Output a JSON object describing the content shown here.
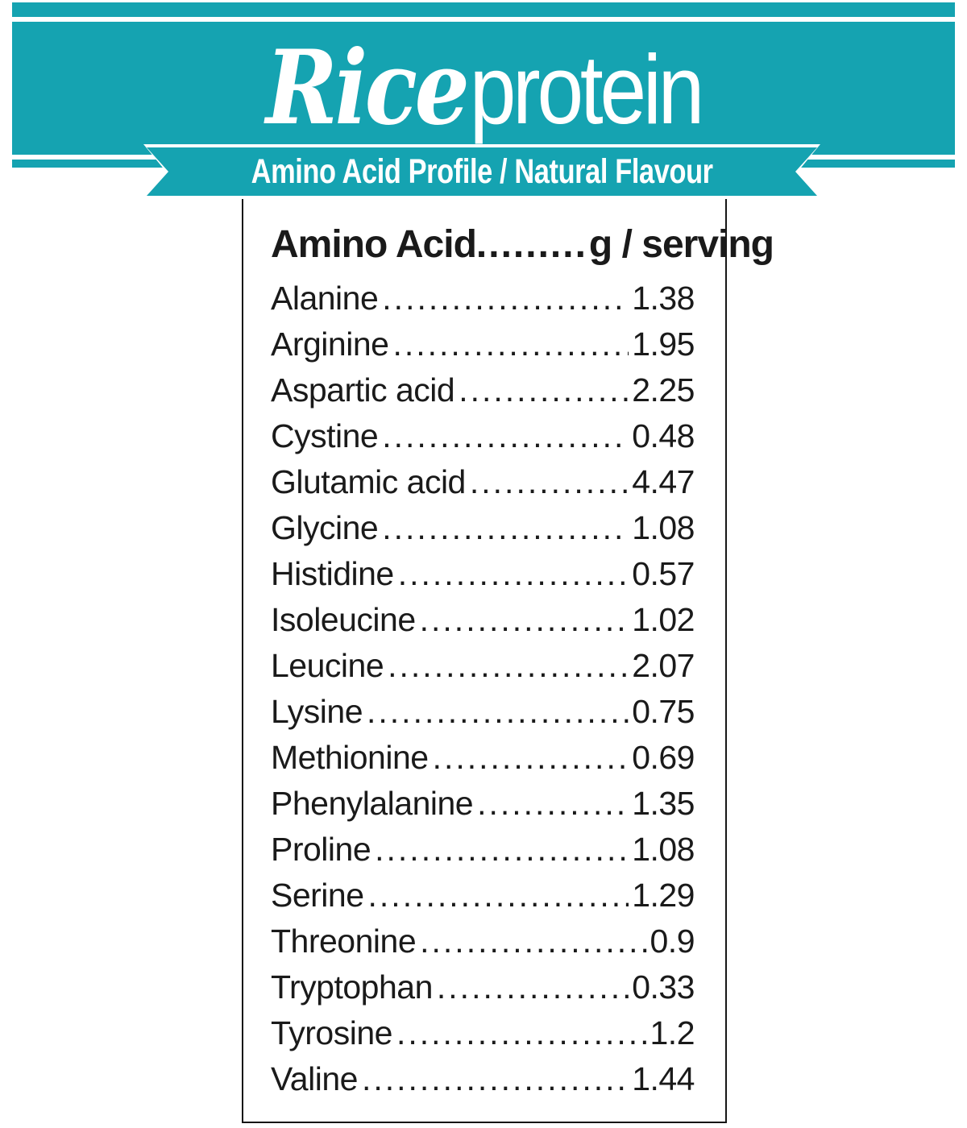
{
  "colors": {
    "teal": "#15a3b1",
    "text": "#1a1a1a"
  },
  "brand": {
    "script": "Rice",
    "rest": "protein"
  },
  "banner": {
    "text": "Amino Acid Profile / Natural Flavour"
  },
  "table": {
    "header": {
      "name": "Amino Acid",
      "leader": ".........",
      "unit": "g / serving"
    },
    "rows": [
      {
        "name": "Alanine",
        "value": "1.38"
      },
      {
        "name": "Arginine",
        "value": "1.95"
      },
      {
        "name": "Aspartic acid",
        "value": "2.25"
      },
      {
        "name": "Cystine",
        "value": "0.48"
      },
      {
        "name": "Glutamic acid",
        "value": "4.47"
      },
      {
        "name": "Glycine",
        "value": "1.08"
      },
      {
        "name": "Histidine",
        "value": "0.57"
      },
      {
        "name": "Isoleucine",
        "value": "1.02"
      },
      {
        "name": "Leucine",
        "value": "2.07"
      },
      {
        "name": "Lysine",
        "value": "0.75"
      },
      {
        "name": "Methionine",
        "value": "0.69"
      },
      {
        "name": "Phenylalanine",
        "value": "1.35"
      },
      {
        "name": "Proline",
        "value": "1.08"
      },
      {
        "name": "Serine",
        "value": "1.29"
      },
      {
        "name": "Threonine",
        "value": "0.9"
      },
      {
        "name": "Tryptophan",
        "value": "0.33"
      },
      {
        "name": "Tyrosine",
        "value": "1.2"
      },
      {
        "name": "Valine",
        "value": "1.44"
      }
    ]
  }
}
